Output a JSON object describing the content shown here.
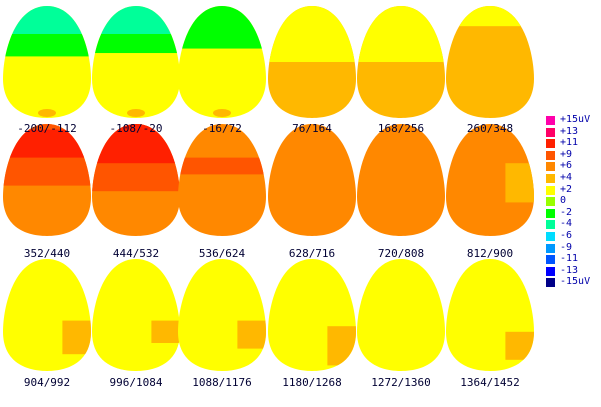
{
  "maps": [
    {
      "label": "-200/-112",
      "base": "#ffff00",
      "patches": [
        [
          "#00ff99",
          0,
          0.25
        ],
        [
          "#00ff00",
          0.25,
          0.45
        ]
      ]
    },
    {
      "label": "-108/-20",
      "base": "#ffff00",
      "patches": [
        [
          "#00ff99",
          0,
          0.25
        ],
        [
          "#00ff00",
          0.25,
          0.42
        ]
      ]
    },
    {
      "label": "-16/72",
      "base": "#ffff00",
      "patches": [
        [
          "#00ff00",
          0,
          0.38
        ]
      ]
    },
    {
      "label": "76/164",
      "base": "#ffb800",
      "patches": [
        [
          "#ffff00",
          0,
          0.5
        ]
      ]
    },
    {
      "label": "168/256",
      "base": "#ffb800",
      "patches": [
        [
          "#ffff00",
          0,
          0.5
        ]
      ]
    },
    {
      "label": "260/348",
      "base": "#ffb800",
      "patches": [
        [
          "#ffff00",
          0,
          0.18
        ]
      ]
    },
    {
      "label": "352/440",
      "base": "#ff8800",
      "patches": [
        [
          "#ff5500",
          0,
          0.55
        ],
        [
          "#ff2000",
          0.05,
          0.3
        ]
      ]
    },
    {
      "label": "444/532",
      "base": "#ff8800",
      "patches": [
        [
          "#ff5500",
          0,
          0.6
        ],
        [
          "#ff2000",
          0.0,
          0.35
        ]
      ]
    },
    {
      "label": "536/624",
      "base": "#ff8800",
      "patches": [
        [
          "#ff5500",
          0.3,
          0.45
        ]
      ]
    },
    {
      "label": "628/716",
      "base": "#ff8800",
      "patches": []
    },
    {
      "label": "720/808",
      "base": "#ff8800",
      "patches": []
    },
    {
      "label": "812/900",
      "base": "#ff8800",
      "patches": [
        [
          "#ffb800",
          0.35,
          0.7
        ]
      ]
    },
    {
      "label": "904/992",
      "base": "#ffff00",
      "patches": [
        [
          "#ffb800",
          0.55,
          0.85
        ]
      ]
    },
    {
      "label": "996/1084",
      "base": "#ffff00",
      "patches": [
        [
          "#ffb800",
          0.55,
          0.75
        ]
      ]
    },
    {
      "label": "1088/1176",
      "base": "#ffff00",
      "patches": [
        [
          "#ffb800",
          0.55,
          0.8
        ]
      ]
    },
    {
      "label": "1180/1268",
      "base": "#ffff00",
      "patches": [
        [
          "#ffb800",
          0.6,
          0.95
        ]
      ]
    },
    {
      "label": "1272/1360",
      "base": "#ffff00",
      "patches": []
    },
    {
      "label": "1364/1452",
      "base": "#ffff00",
      "patches": [
        [
          "#ffb800",
          0.65,
          0.9
        ]
      ]
    }
  ],
  "legend": [
    {
      "label": "+15uV",
      "color": "#ff00aa"
    },
    {
      "label": "+13",
      "color": "#ff0066"
    },
    {
      "label": "+11",
      "color": "#ff2000"
    },
    {
      "label": "+9",
      "color": "#ff5500"
    },
    {
      "label": "+6",
      "color": "#ff8800"
    },
    {
      "label": "+4",
      "color": "#ffb800"
    },
    {
      "label": "+2",
      "color": "#ffff00"
    },
    {
      "label": "0",
      "color": "#99ff00"
    },
    {
      "label": "-2",
      "color": "#00ff00"
    },
    {
      "label": "-4",
      "color": "#00ff99"
    },
    {
      "label": "-6",
      "color": "#00ddff"
    },
    {
      "label": "-9",
      "color": "#0099ff"
    },
    {
      "label": "-11",
      "color": "#0055ff"
    },
    {
      "label": "-13",
      "color": "#0000ff"
    },
    {
      "label": "-15uV",
      "color": "#000088"
    }
  ]
}
